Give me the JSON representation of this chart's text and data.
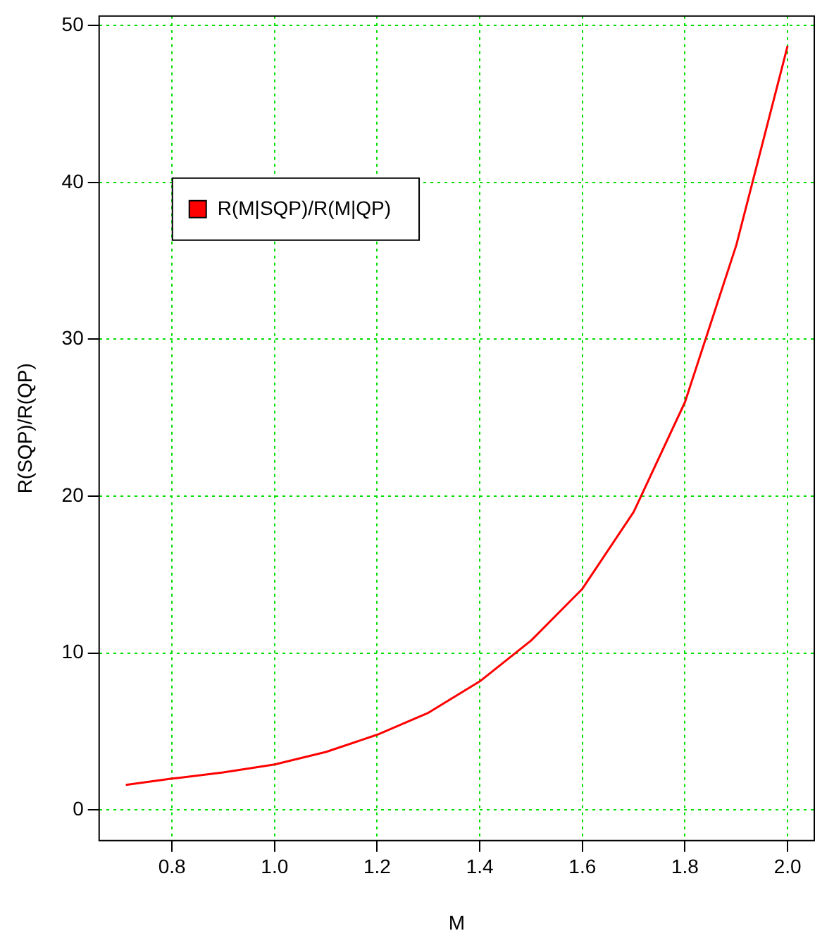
{
  "chart_data": {
    "type": "line",
    "xlabel": "M",
    "ylabel": "R(SQP)/R(QP)",
    "series": [
      {
        "name": "R(M|SQP)/R(M|QP)",
        "color": "#ff0000",
        "x": [
          0.71,
          0.8,
          0.9,
          1.0,
          1.1,
          1.2,
          1.3,
          1.4,
          1.5,
          1.6,
          1.7,
          1.8,
          1.9,
          2.0
        ],
        "values": [
          1.6,
          2.0,
          2.4,
          2.9,
          3.7,
          4.8,
          6.2,
          8.2,
          10.8,
          14.1,
          19.0,
          26,
          36,
          48.7
        ]
      }
    ],
    "xlim": [
      0.658,
      2.052
    ],
    "ylim": [
      -1.95,
      50.6
    ],
    "xticks": [
      0.8,
      {
        "value": 1,
        "label": "1.0"
      },
      1.2,
      1.4,
      1.6,
      1.8,
      {
        "value": 2,
        "label": "2.0"
      }
    ],
    "yticks": [
      0,
      10,
      20,
      30,
      40,
      50
    ],
    "grid": true,
    "legend": "top left",
    "marker": "none",
    "line_style": "solid"
  }
}
